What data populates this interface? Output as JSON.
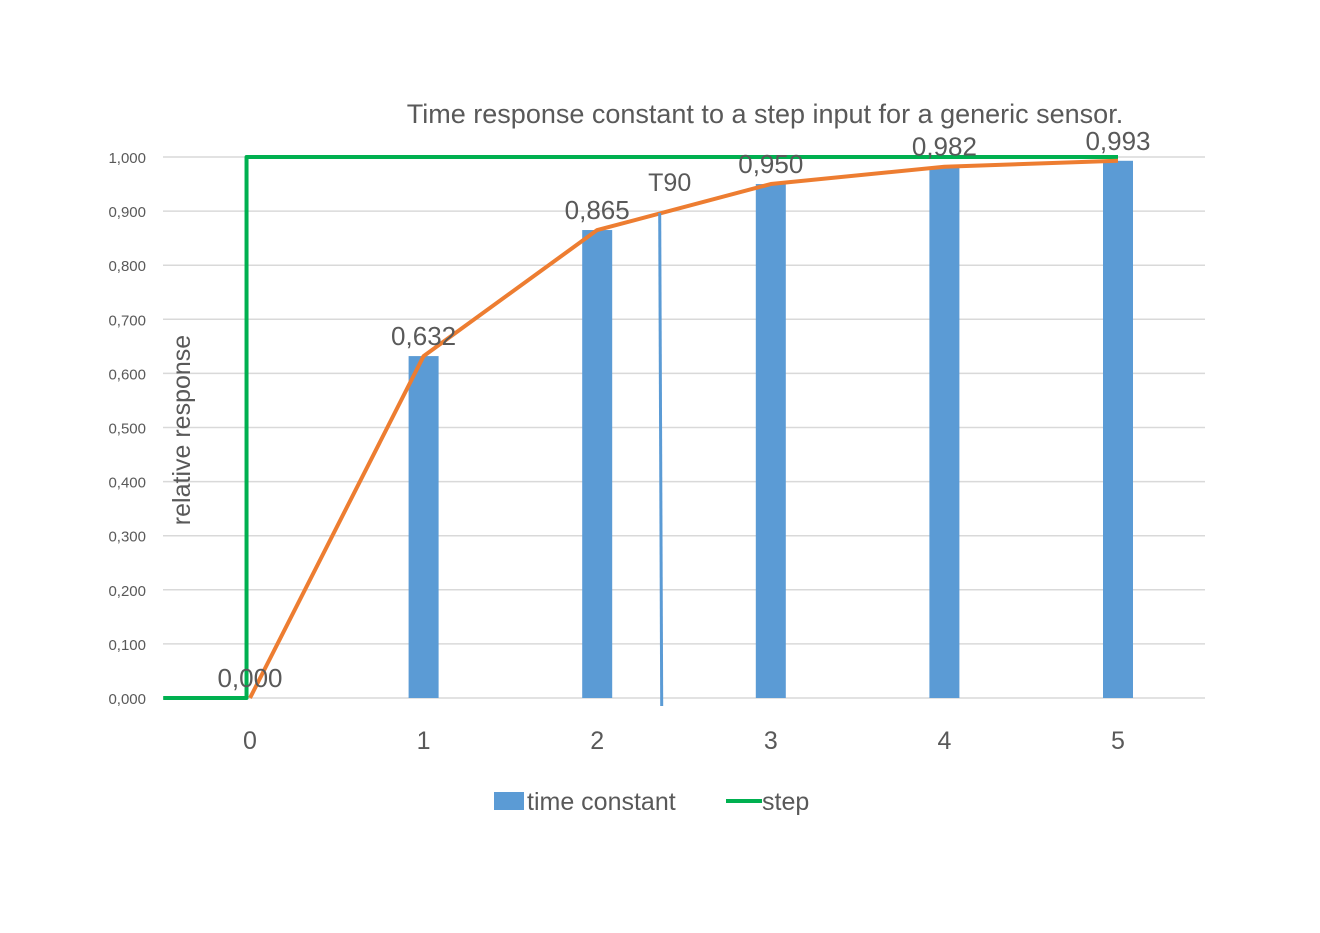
{
  "chart_data": {
    "type": "bar",
    "title": "Time response constant to a step input for a generic sensor.",
    "ylabel": "relative response",
    "xlabel": "",
    "categories": [
      "0",
      "1",
      "2",
      "3",
      "4",
      "5"
    ],
    "ylim": [
      0,
      1
    ],
    "yticks": [
      "0,000",
      "0,100",
      "0,200",
      "0,300",
      "0,400",
      "0,500",
      "0,600",
      "0,700",
      "0,800",
      "0,900",
      "1,000"
    ],
    "grid": true,
    "legend_position": "bottom",
    "series": [
      {
        "name": "time constant",
        "kind": "bar",
        "color": "#5B9BD5",
        "values": [
          0.0,
          0.632,
          0.865,
          0.95,
          0.982,
          0.993
        ],
        "labels": [
          "0,000",
          "0,632",
          "0,865",
          "0,950",
          "0,982",
          "0,993"
        ]
      },
      {
        "name": "step",
        "kind": "line",
        "color": "#00B050",
        "points": [
          [
            -0.5,
            0
          ],
          [
            -0.02,
            0
          ],
          [
            -0.02,
            1
          ],
          [
            5,
            1
          ]
        ]
      },
      {
        "kind": "line",
        "color": "#ED7D31",
        "points": [
          [
            0,
            0
          ],
          [
            1,
            0.632
          ],
          [
            2,
            0.865
          ],
          [
            3,
            0.95
          ],
          [
            4,
            0.982
          ],
          [
            5,
            0.993
          ]
        ]
      }
    ],
    "annotations": [
      {
        "text": "T90",
        "x": 2.36,
        "y": 0.9,
        "color": "#5B9BD5"
      }
    ]
  }
}
